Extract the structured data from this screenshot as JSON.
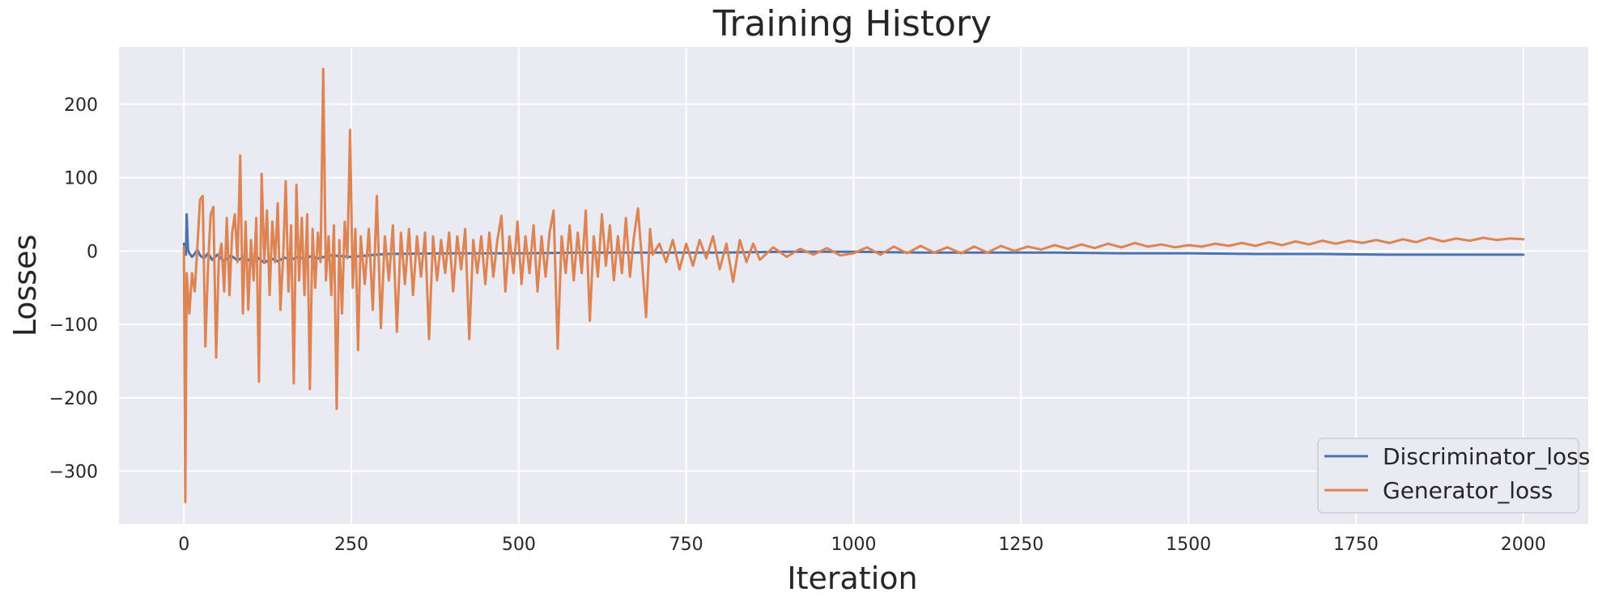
{
  "chart_data": {
    "type": "line",
    "title": "Training History",
    "xlabel": "Iteration",
    "ylabel": "Losses",
    "xlim": [
      -97,
      2097
    ],
    "ylim": [
      -372,
      278
    ],
    "x_ticks": [
      0,
      250,
      500,
      750,
      1000,
      1250,
      1500,
      1750,
      2000
    ],
    "y_ticks": [
      -300,
      -200,
      -100,
      0,
      100,
      200
    ],
    "grid": true,
    "legend_position": "lower-right",
    "series": [
      {
        "name": "Discriminator_loss",
        "color": "#4c72b0",
        "points": [
          [
            0,
            10
          ],
          [
            3,
            -5
          ],
          [
            4,
            50
          ],
          [
            6,
            2
          ],
          [
            8,
            -3
          ],
          [
            12,
            -8
          ],
          [
            16,
            -4
          ],
          [
            20,
            2
          ],
          [
            24,
            -6
          ],
          [
            30,
            -10
          ],
          [
            36,
            -3
          ],
          [
            42,
            -12
          ],
          [
            50,
            -5
          ],
          [
            60,
            -14
          ],
          [
            70,
            -6
          ],
          [
            80,
            -13
          ],
          [
            90,
            -7
          ],
          [
            100,
            -15
          ],
          [
            110,
            -9
          ],
          [
            120,
            -16
          ],
          [
            130,
            -10
          ],
          [
            140,
            -14
          ],
          [
            150,
            -9
          ],
          [
            160,
            -12
          ],
          [
            170,
            -8
          ],
          [
            180,
            -11
          ],
          [
            190,
            -7
          ],
          [
            200,
            -10
          ],
          [
            220,
            -6
          ],
          [
            250,
            -8
          ],
          [
            300,
            -4
          ],
          [
            400,
            -3
          ],
          [
            500,
            -3
          ],
          [
            600,
            -2
          ],
          [
            700,
            -2
          ],
          [
            800,
            -2
          ],
          [
            900,
            -1
          ],
          [
            1000,
            -1
          ],
          [
            1100,
            -2
          ],
          [
            1200,
            -2
          ],
          [
            1300,
            -2
          ],
          [
            1400,
            -3
          ],
          [
            1500,
            -3
          ],
          [
            1600,
            -4
          ],
          [
            1700,
            -4
          ],
          [
            1800,
            -5
          ],
          [
            1900,
            -5
          ],
          [
            2000,
            -5
          ]
        ]
      },
      {
        "name": "Generator_loss",
        "color": "#dd8452",
        "points": [
          [
            0,
            5
          ],
          [
            2,
            -342
          ],
          [
            4,
            -30
          ],
          [
            8,
            -85
          ],
          [
            12,
            -30
          ],
          [
            16,
            -55
          ],
          [
            20,
            5
          ],
          [
            24,
            70
          ],
          [
            28,
            75
          ],
          [
            32,
            -130
          ],
          [
            36,
            -20
          ],
          [
            40,
            50
          ],
          [
            44,
            60
          ],
          [
            48,
            -145
          ],
          [
            52,
            -10
          ],
          [
            56,
            10
          ],
          [
            60,
            -55
          ],
          [
            64,
            45
          ],
          [
            68,
            -60
          ],
          [
            72,
            25
          ],
          [
            76,
            50
          ],
          [
            80,
            -15
          ],
          [
            84,
            130
          ],
          [
            88,
            -85
          ],
          [
            92,
            40
          ],
          [
            96,
            -80
          ],
          [
            100,
            15
          ],
          [
            104,
            -40
          ],
          [
            108,
            45
          ],
          [
            112,
            -178
          ],
          [
            116,
            105
          ],
          [
            120,
            -15
          ],
          [
            124,
            55
          ],
          [
            128,
            -60
          ],
          [
            132,
            40
          ],
          [
            136,
            -15
          ],
          [
            140,
            65
          ],
          [
            144,
            -80
          ],
          [
            148,
            -10
          ],
          [
            152,
            95
          ],
          [
            156,
            -55
          ],
          [
            160,
            35
          ],
          [
            164,
            -180
          ],
          [
            168,
            90
          ],
          [
            172,
            -40
          ],
          [
            176,
            45
          ],
          [
            180,
            -60
          ],
          [
            184,
            50
          ],
          [
            188,
            -188
          ],
          [
            192,
            30
          ],
          [
            196,
            -50
          ],
          [
            200,
            25
          ],
          [
            204,
            -15
          ],
          [
            208,
            248
          ],
          [
            212,
            -40
          ],
          [
            216,
            20
          ],
          [
            220,
            -60
          ],
          [
            224,
            35
          ],
          [
            228,
            -215
          ],
          [
            232,
            15
          ],
          [
            236,
            -85
          ],
          [
            240,
            40
          ],
          [
            244,
            -10
          ],
          [
            248,
            165
          ],
          [
            252,
            -50
          ],
          [
            256,
            30
          ],
          [
            260,
            -135
          ],
          [
            264,
            20
          ],
          [
            270,
            -45
          ],
          [
            276,
            30
          ],
          [
            282,
            -80
          ],
          [
            288,
            75
          ],
          [
            294,
            -105
          ],
          [
            300,
            20
          ],
          [
            306,
            -40
          ],
          [
            312,
            35
          ],
          [
            318,
            -110
          ],
          [
            324,
            25
          ],
          [
            330,
            -45
          ],
          [
            336,
            30
          ],
          [
            342,
            -60
          ],
          [
            348,
            20
          ],
          [
            354,
            -35
          ],
          [
            360,
            25
          ],
          [
            366,
            -120
          ],
          [
            372,
            20
          ],
          [
            378,
            -40
          ],
          [
            384,
            15
          ],
          [
            390,
            -30
          ],
          [
            396,
            25
          ],
          [
            402,
            -55
          ],
          [
            408,
            20
          ],
          [
            414,
            -25
          ],
          [
            420,
            30
          ],
          [
            426,
            -120
          ],
          [
            432,
            15
          ],
          [
            438,
            -30
          ],
          [
            444,
            20
          ],
          [
            450,
            -45
          ],
          [
            456,
            25
          ],
          [
            462,
            -35
          ],
          [
            468,
            15
          ],
          [
            474,
            48
          ],
          [
            480,
            -55
          ],
          [
            486,
            20
          ],
          [
            492,
            -30
          ],
          [
            498,
            40
          ],
          [
            504,
            -45
          ],
          [
            510,
            20
          ],
          [
            516,
            -30
          ],
          [
            522,
            35
          ],
          [
            528,
            -55
          ],
          [
            534,
            20
          ],
          [
            540,
            -35
          ],
          [
            546,
            25
          ],
          [
            552,
            55
          ],
          [
            558,
            -133
          ],
          [
            564,
            20
          ],
          [
            570,
            -30
          ],
          [
            576,
            35
          ],
          [
            582,
            -40
          ],
          [
            588,
            25
          ],
          [
            594,
            -30
          ],
          [
            600,
            55
          ],
          [
            606,
            -95
          ],
          [
            612,
            20
          ],
          [
            618,
            -35
          ],
          [
            624,
            50
          ],
          [
            630,
            -20
          ],
          [
            636,
            35
          ],
          [
            642,
            -40
          ],
          [
            648,
            20
          ],
          [
            654,
            -30
          ],
          [
            660,
            45
          ],
          [
            666,
            -35
          ],
          [
            672,
            20
          ],
          [
            678,
            58
          ],
          [
            684,
            -15
          ],
          [
            690,
            -90
          ],
          [
            696,
            30
          ],
          [
            700,
            -5
          ],
          [
            710,
            10
          ],
          [
            720,
            -15
          ],
          [
            730,
            15
          ],
          [
            740,
            -25
          ],
          [
            750,
            10
          ],
          [
            760,
            -20
          ],
          [
            770,
            15
          ],
          [
            780,
            -10
          ],
          [
            790,
            20
          ],
          [
            800,
            -25
          ],
          [
            810,
            10
          ],
          [
            820,
            -42
          ],
          [
            830,
            15
          ],
          [
            840,
            -15
          ],
          [
            850,
            10
          ],
          [
            860,
            -12
          ],
          [
            880,
            5
          ],
          [
            900,
            -8
          ],
          [
            920,
            3
          ],
          [
            940,
            -5
          ],
          [
            960,
            4
          ],
          [
            980,
            -6
          ],
          [
            1000,
            -3
          ],
          [
            1020,
            5
          ],
          [
            1040,
            -5
          ],
          [
            1060,
            6
          ],
          [
            1080,
            -3
          ],
          [
            1100,
            7
          ],
          [
            1120,
            -2
          ],
          [
            1140,
            5
          ],
          [
            1160,
            -3
          ],
          [
            1180,
            6
          ],
          [
            1200,
            -2
          ],
          [
            1220,
            7
          ],
          [
            1240,
            0
          ],
          [
            1260,
            6
          ],
          [
            1280,
            2
          ],
          [
            1300,
            8
          ],
          [
            1320,
            3
          ],
          [
            1340,
            9
          ],
          [
            1360,
            4
          ],
          [
            1380,
            10
          ],
          [
            1400,
            5
          ],
          [
            1420,
            11
          ],
          [
            1440,
            6
          ],
          [
            1460,
            9
          ],
          [
            1480,
            5
          ],
          [
            1500,
            8
          ],
          [
            1520,
            6
          ],
          [
            1540,
            10
          ],
          [
            1560,
            7
          ],
          [
            1580,
            11
          ],
          [
            1600,
            7
          ],
          [
            1620,
            12
          ],
          [
            1640,
            8
          ],
          [
            1660,
            13
          ],
          [
            1680,
            9
          ],
          [
            1700,
            14
          ],
          [
            1720,
            10
          ],
          [
            1740,
            14
          ],
          [
            1760,
            11
          ],
          [
            1780,
            15
          ],
          [
            1800,
            11
          ],
          [
            1820,
            16
          ],
          [
            1840,
            12
          ],
          [
            1860,
            18
          ],
          [
            1880,
            13
          ],
          [
            1900,
            17
          ],
          [
            1920,
            14
          ],
          [
            1940,
            18
          ],
          [
            1960,
            15
          ],
          [
            1980,
            17
          ],
          [
            2000,
            16
          ]
        ]
      }
    ]
  }
}
